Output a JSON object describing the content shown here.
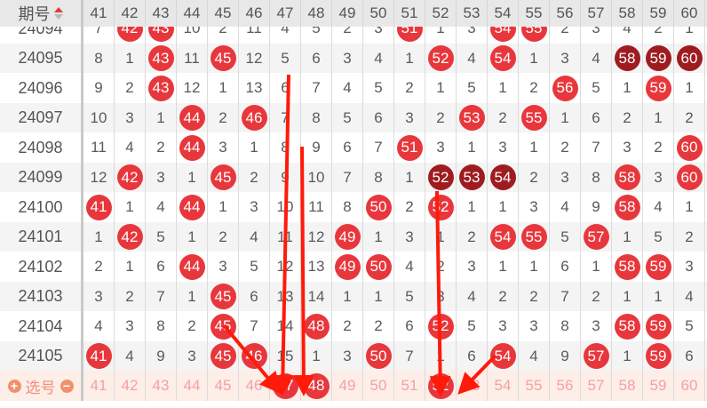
{
  "header": {
    "period_label": "期号",
    "columns": [
      "41",
      "42",
      "43",
      "44",
      "45",
      "46",
      "47",
      "48",
      "49",
      "50",
      "51",
      "52",
      "53",
      "54",
      "55",
      "56",
      "57",
      "58",
      "59",
      "60"
    ]
  },
  "colors": {
    "hit": "#e8373c",
    "hot": "#9e1c20",
    "select_bg": "#fdeee8"
  },
  "rows": [
    {
      "period": "24094",
      "cells": [
        "7",
        "42",
        "43",
        "10",
        "2",
        "11",
        "4",
        "5",
        "2",
        "3",
        "51",
        "1",
        "3",
        "54",
        "55",
        "2",
        "3",
        "4",
        "2",
        "1"
      ],
      "hits": [
        "42",
        "43",
        "51",
        "54",
        "55"
      ],
      "hot": []
    },
    {
      "period": "24095",
      "cells": [
        "8",
        "1",
        "43",
        "11",
        "45",
        "12",
        "5",
        "6",
        "3",
        "4",
        "1",
        "52",
        "4",
        "54",
        "1",
        "3",
        "4",
        "58",
        "59",
        "60"
      ],
      "hits": [
        "43",
        "45",
        "52",
        "54"
      ],
      "hot": [
        "58",
        "59",
        "60"
      ]
    },
    {
      "period": "24096",
      "cells": [
        "9",
        "2",
        "43",
        "12",
        "1",
        "13",
        "6",
        "7",
        "4",
        "5",
        "2",
        "1",
        "5",
        "1",
        "2",
        "56",
        "5",
        "1",
        "59",
        "1"
      ],
      "hits": [
        "43",
        "56",
        "59"
      ],
      "hot": []
    },
    {
      "period": "24097",
      "cells": [
        "10",
        "3",
        "1",
        "44",
        "2",
        "46",
        "7",
        "8",
        "5",
        "6",
        "3",
        "2",
        "53",
        "2",
        "55",
        "1",
        "6",
        "2",
        "1",
        "2"
      ],
      "hits": [
        "44",
        "46",
        "53",
        "55"
      ],
      "hot": []
    },
    {
      "period": "24098",
      "cells": [
        "11",
        "4",
        "2",
        "44",
        "3",
        "1",
        "8",
        "9",
        "6",
        "7",
        "51",
        "3",
        "1",
        "3",
        "1",
        "2",
        "7",
        "3",
        "2",
        "60"
      ],
      "hits": [
        "44",
        "51",
        "60"
      ],
      "hot": []
    },
    {
      "period": "24099",
      "cells": [
        "12",
        "42",
        "3",
        "1",
        "45",
        "2",
        "9",
        "10",
        "7",
        "8",
        "1",
        "52",
        "53",
        "54",
        "2",
        "3",
        "8",
        "58",
        "3",
        "60"
      ],
      "hits": [
        "42",
        "45",
        "58",
        "60"
      ],
      "hot": [
        "52",
        "53",
        "54"
      ]
    },
    {
      "period": "24100",
      "cells": [
        "41",
        "1",
        "4",
        "44",
        "1",
        "3",
        "10",
        "11",
        "8",
        "50",
        "2",
        "52",
        "1",
        "1",
        "3",
        "4",
        "9",
        "58",
        "4",
        "1"
      ],
      "hits": [
        "41",
        "44",
        "50",
        "52",
        "58"
      ],
      "hot": []
    },
    {
      "period": "24101",
      "cells": [
        "1",
        "42",
        "5",
        "1",
        "2",
        "4",
        "11",
        "12",
        "49",
        "1",
        "3",
        "1",
        "2",
        "54",
        "55",
        "5",
        "57",
        "1",
        "5",
        "2"
      ],
      "hits": [
        "42",
        "49",
        "54",
        "55",
        "57"
      ],
      "hot": []
    },
    {
      "period": "24102",
      "cells": [
        "2",
        "1",
        "6",
        "44",
        "3",
        "5",
        "12",
        "13",
        "49",
        "50",
        "4",
        "2",
        "3",
        "1",
        "1",
        "6",
        "1",
        "58",
        "59",
        "3"
      ],
      "hits": [
        "44",
        "49",
        "50",
        "58",
        "59"
      ],
      "hot": []
    },
    {
      "period": "24103",
      "cells": [
        "3",
        "2",
        "7",
        "1",
        "45",
        "6",
        "13",
        "14",
        "1",
        "1",
        "5",
        "3",
        "4",
        "2",
        "2",
        "7",
        "2",
        "1",
        "1",
        "4"
      ],
      "hits": [
        "45"
      ],
      "hot": []
    },
    {
      "period": "24104",
      "cells": [
        "4",
        "3",
        "8",
        "2",
        "45",
        "7",
        "14",
        "48",
        "2",
        "2",
        "6",
        "52",
        "5",
        "3",
        "3",
        "8",
        "3",
        "58",
        "59",
        "5"
      ],
      "hits": [
        "45",
        "48",
        "52",
        "58",
        "59"
      ],
      "hot": []
    },
    {
      "period": "24105",
      "cells": [
        "41",
        "4",
        "9",
        "3",
        "45",
        "46",
        "15",
        "1",
        "3",
        "50",
        "7",
        "1",
        "6",
        "54",
        "4",
        "9",
        "57",
        "1",
        "59",
        "6"
      ],
      "hits": [
        "41",
        "45",
        "46",
        "50",
        "54",
        "57",
        "59"
      ],
      "hot": []
    }
  ],
  "select_row": {
    "label": "选号",
    "plus": "+",
    "minus": "−",
    "selected": [
      "47",
      "48",
      "52"
    ]
  }
}
